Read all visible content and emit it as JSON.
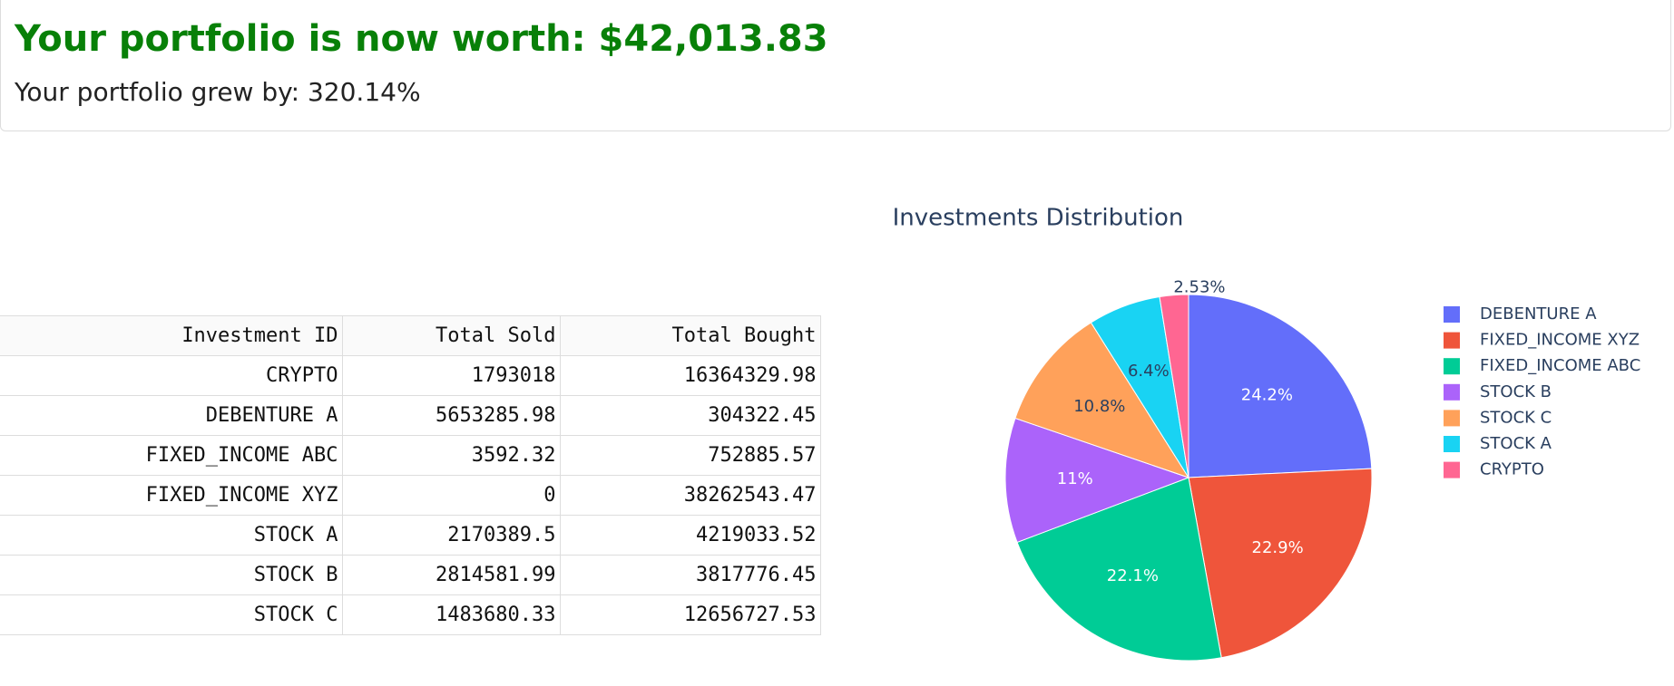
{
  "header": {
    "title": "Your portfolio is now worth: $42,013.83",
    "subtitle": "Your portfolio grew by: 320.14%"
  },
  "table": {
    "columns": [
      "Investment ID",
      "Total Sold",
      "Total Bought"
    ],
    "rows": [
      [
        "CRYPTO",
        1793018,
        16364329.98
      ],
      [
        "DEBENTURE A",
        5653285.98,
        304322.45
      ],
      [
        "FIXED_INCOME ABC",
        3592.32,
        752885.57
      ],
      [
        "FIXED_INCOME XYZ",
        0,
        38262543.47
      ],
      [
        "STOCK A",
        2170389.5,
        4219033.52
      ],
      [
        "STOCK B",
        2814581.99,
        3817776.45
      ],
      [
        "STOCK C",
        1483680.33,
        12656727.53
      ]
    ]
  },
  "chart_data": {
    "type": "pie",
    "title": "Investments Distribution",
    "categories": [
      "DEBENTURE A",
      "FIXED_INCOME XYZ",
      "FIXED_INCOME ABC",
      "STOCK B",
      "STOCK C",
      "STOCK A",
      "CRYPTO"
    ],
    "values": [
      24.2,
      22.9,
      22.1,
      11,
      10.8,
      6.4,
      2.53
    ],
    "value_labels": [
      "24.2%",
      "22.9%",
      "22.1%",
      "11%",
      "10.8%",
      "6.4%",
      "2.53%"
    ],
    "colors": [
      "#636efa",
      "#ef553b",
      "#00cc96",
      "#ab63fa",
      "#ffa15a",
      "#19d3f3",
      "#ff6692"
    ],
    "legend": "right"
  }
}
